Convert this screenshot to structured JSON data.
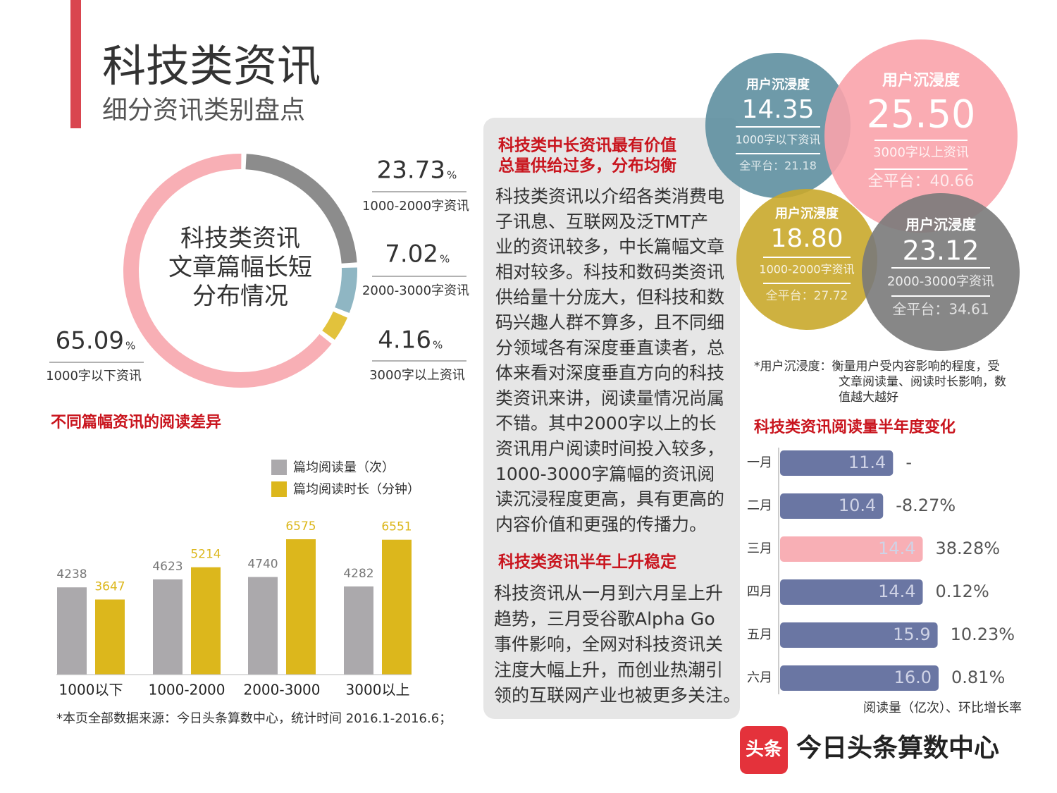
{
  "header": {
    "title": "科技类资讯",
    "subtitle": "细分资讯类别盘点"
  },
  "chart_data": [
    {
      "type": "donut",
      "title": [
        "科技类资讯",
        "文章篇幅长短",
        "分布情况"
      ],
      "categories": [
        "1000-2000字资讯",
        "2000-3000字资讯",
        "3000字以上资讯",
        "1000字以下资讯"
      ],
      "values": [
        23.73,
        7.02,
        4.16,
        65.09
      ],
      "colors": [
        "#8c8c8c",
        "#8fb6c3",
        "#e2c23c",
        "#f8afb5"
      ],
      "unit": "%"
    },
    {
      "type": "grouped-bar",
      "title": "不同篇幅资讯的阅读差异",
      "categories": [
        "1000以下",
        "1000-2000",
        "2000-3000",
        "3000以上"
      ],
      "series": [
        {
          "name": "篇均阅读量（次）",
          "color": "#aba9ac",
          "values": [
            4238,
            4623,
            4740,
            4282
          ]
        },
        {
          "name": "篇均阅读时长（分钟）",
          "color": "#dcb71c",
          "values": [
            3647,
            5214,
            6575,
            6551
          ]
        }
      ]
    },
    {
      "type": "hbar",
      "title": "科技类资讯阅读量半年度变化",
      "categories": [
        "一月",
        "二月",
        "三月",
        "四月",
        "五月",
        "六月"
      ],
      "values": [
        11.4,
        10.4,
        14.4,
        14.4,
        15.9,
        16.0
      ],
      "value_labels": [
        "11.4",
        "10.4",
        "14.4",
        "14.4",
        "15.9",
        "16.0"
      ],
      "colors": [
        "#6a76a3",
        "#6a76a3",
        "#f8afb5",
        "#6a76a3",
        "#6a76a3",
        "#6a76a3"
      ],
      "growth_labels": [
        "-",
        "-8.27%",
        "38.28%",
        "0.12%",
        "10.23%",
        "0.81%"
      ],
      "axis_label": "阅读量（亿次）、环比增长率"
    }
  ],
  "immersion": {
    "items": [
      {
        "title": "用户沉浸度",
        "value": "14.35",
        "category": "1000字以下资讯",
        "platform": "全平台：21.18"
      },
      {
        "title": "用户沉浸度",
        "value": "25.50",
        "category": "3000字以上资讯",
        "platform": "全平台：40.66"
      },
      {
        "title": "用户沉浸度",
        "value": "18.80",
        "category": "1000-2000字资讯",
        "platform": "全平台：27.72"
      },
      {
        "title": "用户沉浸度",
        "value": "23.12",
        "category": "2000-3000字资讯",
        "platform": "全平台：34.61"
      }
    ],
    "note": [
      "*用户沉浸度：衡量用户受内容影响的程度，受",
      "文章阅读量、阅读时长影响，数",
      "值越大越好"
    ]
  },
  "text_panel": {
    "heading1": [
      "科技类中长资讯最有价值",
      "总量供给过多，分布均衡"
    ],
    "paragraph1": [
      "科技类资讯以介绍各类消费电",
      "子讯息、互联网及泛TMT产",
      "业的资讯较多，中长篇幅文章",
      "相对较多。科技和数码类资讯",
      "供给量十分庞大，但科技和数",
      "码兴趣人群不算多，且不同细",
      "分领域各有深度垂直读者，总",
      "体来看对深度垂直方向的科技",
      "类资讯来讲，阅读量情况尚属",
      "不错。其中2000字以上的长",
      "资讯用户阅读时间投入较多，",
      "1000-3000字篇幅的资讯阅",
      "读沉浸程度更高，具有更高的",
      "内容价值和更强的传播力。"
    ],
    "heading2": "科技类资讯半年上升稳定",
    "paragraph2": [
      "科技资讯从一月到六月呈上升",
      "趋势，三月受谷歌Alpha Go",
      "事件影响，全网对科技资讯关",
      "注度大幅上升，而创业热潮引",
      "领的互联网产业也被更多关注。"
    ]
  },
  "footnote": "*本页全部数据来源：今日头条算数中心，统计时间 2016.1-2016.6；",
  "logo": {
    "icon": "头条",
    "name": "今日头条算数中心"
  }
}
